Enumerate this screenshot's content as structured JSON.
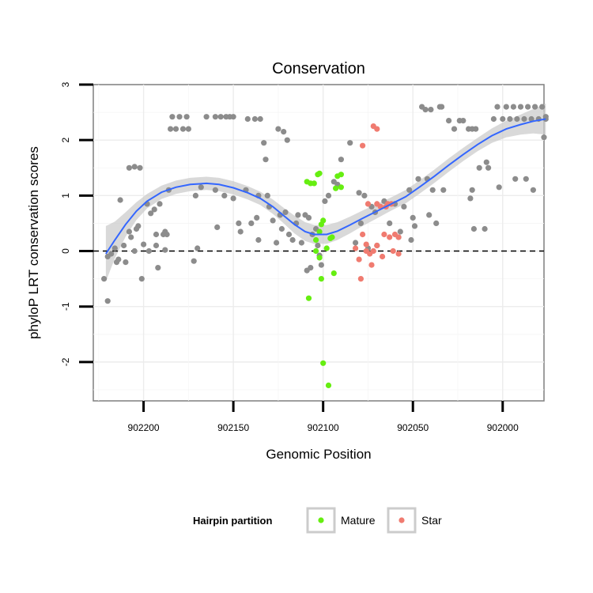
{
  "chart_data": {
    "type": "scatter",
    "title": "Conservation",
    "xlabel": "Genomic Position",
    "ylabel": "phyloP LRT conservation scores",
    "x_reversed": true,
    "xlim": [
      902228,
      901977
    ],
    "ylim": [
      -2.7,
      3.0
    ],
    "x_ticks": [
      902200,
      902150,
      902100,
      902050,
      902000
    ],
    "x_tick_labels": [
      "902200",
      "902150",
      "902100",
      "902050",
      "902000"
    ],
    "y_ticks": [
      -2,
      -1,
      0,
      1,
      2,
      3
    ],
    "y_tick_labels": [
      "-2",
      "-1",
      "0",
      "1",
      "2",
      "3"
    ],
    "grid": true,
    "reference_line": {
      "y": 0,
      "style": "dashed"
    },
    "colors": {
      "other": "#8c8c8c",
      "Mature": "#66ee11",
      "Star": "#f07b70",
      "smooth": "#3366ff",
      "band": "#cccccc"
    },
    "legend": {
      "title": "Hairpin partition",
      "placement": "bottom",
      "entries": [
        "Mature",
        "Star"
      ]
    },
    "series": [
      {
        "group": "other",
        "points": [
          [
            902222,
            -0.5
          ],
          [
            902220,
            -0.1
          ],
          [
            902220,
            -0.9
          ],
          [
            902218,
            -0.05
          ],
          [
            902216,
            0.05
          ],
          [
            902215,
            -0.2
          ],
          [
            902214,
            -0.15
          ],
          [
            902213,
            0.92
          ],
          [
            902211,
            0.1
          ],
          [
            902210,
            -0.2
          ],
          [
            902208,
            1.5
          ],
          [
            902208,
            0.35
          ],
          [
            902207,
            0.25
          ],
          [
            902205,
            1.52
          ],
          [
            902205,
            0.0
          ],
          [
            902204,
            0.4
          ],
          [
            902203,
            0.45
          ],
          [
            902201,
            -0.5
          ],
          [
            902202,
            1.5
          ],
          [
            902200,
            0.12
          ],
          [
            902198,
            0.85
          ],
          [
            902197,
            0.0
          ],
          [
            902196,
            0.68
          ],
          [
            902194,
            0.75
          ],
          [
            902193,
            0.3
          ],
          [
            902193,
            0.1
          ],
          [
            902192,
            -0.3
          ],
          [
            902191,
            0.85
          ],
          [
            902189,
            0.3
          ],
          [
            902188,
            0.02
          ],
          [
            902188,
            0.35
          ],
          [
            902187,
            0.3
          ],
          [
            902186,
            1.1
          ],
          [
            902185,
            2.2
          ],
          [
            902184,
            2.42
          ],
          [
            902180,
            2.42
          ],
          [
            902176,
            2.42
          ],
          [
            902182,
            2.2
          ],
          [
            902178,
            2.2
          ],
          [
            902175,
            2.2
          ],
          [
            902172,
            -0.18
          ],
          [
            902170,
            0.05
          ],
          [
            902171,
            1.0
          ],
          [
            902168,
            1.15
          ],
          [
            902165,
            2.42
          ],
          [
            902160,
            2.42
          ],
          [
            902157,
            2.42
          ],
          [
            902154,
            2.42
          ],
          [
            902152,
            2.42
          ],
          [
            902150,
            2.42
          ],
          [
            902160,
            1.1
          ],
          [
            902159,
            0.43
          ],
          [
            902155,
            1.0
          ],
          [
            902150,
            0.95
          ],
          [
            902147,
            0.5
          ],
          [
            902146,
            0.35
          ],
          [
            902143,
            1.1
          ],
          [
            902142,
            2.38
          ],
          [
            902140,
            0.5
          ],
          [
            902138,
            2.38
          ],
          [
            902137,
            0.6
          ],
          [
            902136,
            0.2
          ],
          [
            902136,
            1.0
          ],
          [
            902135,
            2.38
          ],
          [
            902133,
            1.95
          ],
          [
            902132,
            1.65
          ],
          [
            902131,
            1.0
          ],
          [
            902130,
            0.8
          ],
          [
            902128,
            0.55
          ],
          [
            902126,
            0.15
          ],
          [
            902125,
            2.2
          ],
          [
            902124,
            0.65
          ],
          [
            902123,
            0.4
          ],
          [
            902122,
            2.15
          ],
          [
            902121,
            0.7
          ],
          [
            902120,
            2.0
          ],
          [
            902119,
            0.3
          ],
          [
            902117,
            0.2
          ],
          [
            902115,
            0.5
          ],
          [
            902114,
            0.65
          ],
          [
            902112,
            0.15
          ],
          [
            902110,
            0.65
          ],
          [
            902109,
            -0.35
          ],
          [
            902108,
            0.6
          ],
          [
            902107,
            -0.3
          ],
          [
            902106,
            0.3
          ],
          [
            902104,
            0.4
          ],
          [
            902103,
            0.1
          ],
          [
            902102,
            -0.08
          ],
          [
            902101,
            -0.25
          ],
          [
            902099,
            0.9
          ],
          [
            902097,
            1.0
          ],
          [
            902094,
            1.25
          ],
          [
            902092,
            1.2
          ],
          [
            902090,
            1.65
          ],
          [
            902085,
            1.95
          ],
          [
            902082,
            0.15
          ],
          [
            902080,
            1.05
          ],
          [
            902079,
            0.5
          ],
          [
            902077,
            1.0
          ],
          [
            902075,
            0.05
          ],
          [
            902073,
            0.8
          ],
          [
            902071,
            0.7
          ],
          [
            902070,
            0.1
          ],
          [
            902066,
            0.9
          ],
          [
            902063,
            0.5
          ],
          [
            902060,
            0.85
          ],
          [
            902058,
            0.25
          ],
          [
            902057,
            0.35
          ],
          [
            902055,
            0.8
          ],
          [
            902052,
            1.1
          ],
          [
            902051,
            0.2
          ],
          [
            902050,
            0.6
          ],
          [
            902049,
            0.45
          ],
          [
            902047,
            1.3
          ],
          [
            902045,
            2.6
          ],
          [
            902043,
            2.55
          ],
          [
            902040,
            2.55
          ],
          [
            902042,
            1.3
          ],
          [
            902041,
            0.65
          ],
          [
            902039,
            1.1
          ],
          [
            902037,
            0.5
          ],
          [
            902035,
            2.6
          ],
          [
            902034,
            2.6
          ],
          [
            902033,
            1.1
          ],
          [
            902030,
            2.35
          ],
          [
            902027,
            2.2
          ],
          [
            902024,
            2.35
          ],
          [
            902022,
            2.35
          ],
          [
            902019,
            2.2
          ],
          [
            902017,
            2.2
          ],
          [
            902015,
            2.2
          ],
          [
            902018,
            0.95
          ],
          [
            902017,
            1.1
          ],
          [
            902016,
            0.4
          ],
          [
            902013,
            1.5
          ],
          [
            902010,
            0.4
          ],
          [
            902009,
            1.6
          ],
          [
            902008,
            1.5
          ],
          [
            902005,
            2.38
          ],
          [
            902003,
            2.6
          ],
          [
            902002,
            1.15
          ],
          [
            902000,
            2.38
          ],
          [
            901998,
            2.6
          ],
          [
            901996,
            2.38
          ],
          [
            901994,
            2.6
          ],
          [
            901993,
            1.3
          ],
          [
            901992,
            2.38
          ],
          [
            901990,
            2.6
          ],
          [
            901988,
            2.38
          ],
          [
            901987,
            1.3
          ],
          [
            901986,
            2.6
          ],
          [
            901984,
            2.38
          ],
          [
            901983,
            1.1
          ],
          [
            901982,
            2.6
          ],
          [
            901980,
            2.38
          ],
          [
            901978,
            2.6
          ],
          [
            901977,
            2.05
          ],
          [
            901976,
            2.42
          ],
          [
            901976,
            2.38
          ]
        ]
      },
      {
        "group": "Mature",
        "name": "Mature",
        "points": [
          [
            902109,
            1.25
          ],
          [
            902107,
            1.22
          ],
          [
            902105,
            1.22
          ],
          [
            902102,
            1.4
          ],
          [
            902103,
            1.38
          ],
          [
            902104,
            0.2
          ],
          [
            902102,
            0.35
          ],
          [
            902101,
            0.48
          ],
          [
            902100,
            0.55
          ],
          [
            902098,
            0.05
          ],
          [
            902096,
            0.23
          ],
          [
            902095,
            0.25
          ],
          [
            902093,
            1.13
          ],
          [
            902092,
            1.35
          ],
          [
            902090,
            1.38
          ],
          [
            902090,
            1.15
          ],
          [
            902102,
            -0.12
          ],
          [
            902108,
            -0.85
          ],
          [
            902101,
            -0.5
          ],
          [
            902094,
            -0.4
          ],
          [
            902100,
            -2.02
          ],
          [
            902097,
            -2.42
          ],
          [
            902104,
            0.0
          ]
        ]
      },
      {
        "group": "Star",
        "name": "Star",
        "points": [
          [
            902082,
            0.05
          ],
          [
            902080,
            -0.15
          ],
          [
            902079,
            -0.5
          ],
          [
            902078,
            0.3
          ],
          [
            902076,
            0.12
          ],
          [
            902074,
            -0.05
          ],
          [
            902073,
            -0.25
          ],
          [
            902072,
            0.0
          ],
          [
            902075,
            0.85
          ],
          [
            902070,
            0.85
          ],
          [
            902068,
            0.8
          ],
          [
            902072,
            2.25
          ],
          [
            902070,
            2.2
          ],
          [
            902065,
            0.8
          ],
          [
            902064,
            0.85
          ],
          [
            902062,
            0.85
          ],
          [
            902066,
            0.3
          ],
          [
            902063,
            0.25
          ],
          [
            902060,
            0.3
          ],
          [
            902058,
            0.25
          ],
          [
            902061,
            0.0
          ],
          [
            902058,
            -0.05
          ],
          [
            902078,
            1.9
          ],
          [
            902076,
            0.0
          ],
          [
            902067,
            -0.1
          ],
          [
            902070,
            0.1
          ]
        ]
      }
    ],
    "smooth_line": [
      [
        902221,
        -0.05
      ],
      [
        902216,
        0.2
      ],
      [
        902210,
        0.48
      ],
      [
        902204,
        0.72
      ],
      [
        902198,
        0.9
      ],
      [
        902190,
        1.06
      ],
      [
        902182,
        1.15
      ],
      [
        902174,
        1.2
      ],
      [
        902165,
        1.22
      ],
      [
        902158,
        1.2
      ],
      [
        902150,
        1.14
      ],
      [
        902142,
        1.05
      ],
      [
        902135,
        0.95
      ],
      [
        902128,
        0.8
      ],
      [
        902122,
        0.64
      ],
      [
        902116,
        0.48
      ],
      [
        902110,
        0.35
      ],
      [
        902105,
        0.3
      ],
      [
        902098,
        0.3
      ],
      [
        902092,
        0.36
      ],
      [
        902085,
        0.47
      ],
      [
        902078,
        0.59
      ],
      [
        902070,
        0.72
      ],
      [
        902062,
        0.85
      ],
      [
        902054,
        0.98
      ],
      [
        902046,
        1.16
      ],
      [
        902038,
        1.35
      ],
      [
        902030,
        1.55
      ],
      [
        902022,
        1.74
      ],
      [
        902014,
        1.92
      ],
      [
        902006,
        2.08
      ],
      [
        901998,
        2.2
      ],
      [
        901990,
        2.28
      ],
      [
        901983,
        2.34
      ],
      [
        901976,
        2.38
      ]
    ],
    "smooth_band_halfwidth": [
      0.5,
      0.33,
      0.22,
      0.16,
      0.13,
      0.12,
      0.12,
      0.12,
      0.12,
      0.12,
      0.12,
      0.12,
      0.12,
      0.13,
      0.14,
      0.16,
      0.17,
      0.17,
      0.17,
      0.16,
      0.15,
      0.14,
      0.13,
      0.12,
      0.12,
      0.12,
      0.12,
      0.12,
      0.12,
      0.12,
      0.13,
      0.15,
      0.18,
      0.22,
      0.28
    ]
  }
}
